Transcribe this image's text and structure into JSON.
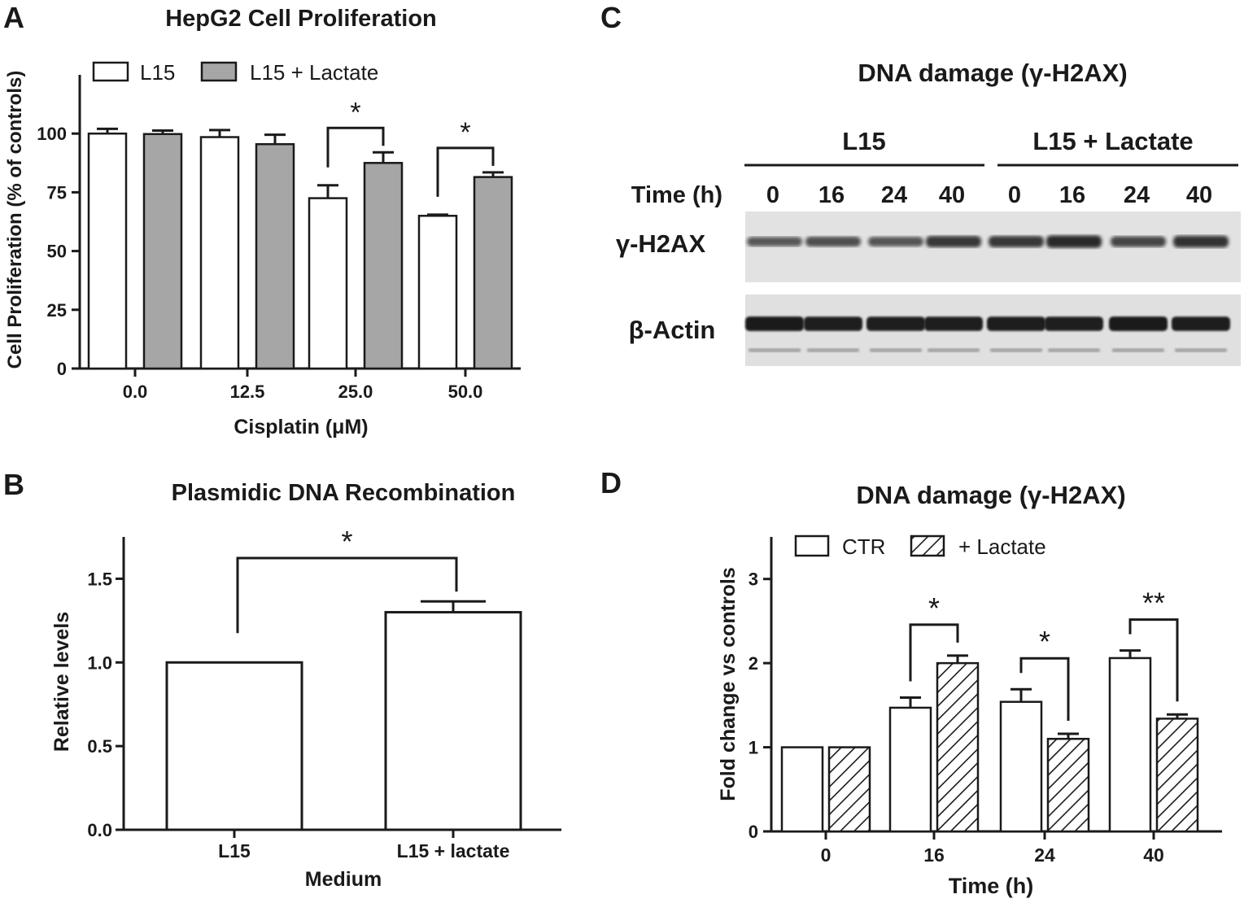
{
  "chart_data": [
    {
      "panel": "A",
      "type": "bar",
      "title": "HepG2 Cell Proliferation",
      "xlabel": "Cisplatin (μM)",
      "ylabel": "Cell Proliferation (% of controls)",
      "categories": [
        "0.0",
        "12.5",
        "25.0",
        "50.0"
      ],
      "ylim": [
        0,
        125
      ],
      "yticks": [
        "0",
        "25",
        "50",
        "75",
        "100"
      ],
      "legend_position": "top-left",
      "series": [
        {
          "name": "L15",
          "values": [
            100,
            98.5,
            72.5,
            65
          ],
          "errors": [
            2,
            3,
            5.5,
            0.5
          ],
          "fill": "#ffffff"
        },
        {
          "name": "L15 + Lactate",
          "values": [
            99.8,
            95.5,
            87.5,
            81.5
          ],
          "errors": [
            1.5,
            4,
            4.5,
            2
          ],
          "fill": "#a6a6a6"
        }
      ],
      "significance": [
        {
          "category_index": 2,
          "label": "*"
        },
        {
          "category_index": 3,
          "label": "*"
        }
      ]
    },
    {
      "panel": "B",
      "type": "bar",
      "title": "Plasmidic DNA Recombination",
      "xlabel": "Medium",
      "ylabel": "Relative levels",
      "categories": [
        "L15",
        "L15 + lactate"
      ],
      "values": [
        1.0,
        1.3
      ],
      "errors": [
        0,
        0.065
      ],
      "ylim": [
        0,
        1.75
      ],
      "yticks": [
        "0.0",
        "0.5",
        "1.0",
        "1.5"
      ],
      "significance": [
        {
          "label": "*"
        }
      ]
    },
    {
      "panel": "C",
      "type": "table",
      "title": "DNA damage (γ-H2AX)",
      "group_labels": [
        "L15",
        "L15 + Lactate"
      ],
      "time_label": "Time (h)",
      "time_points": [
        "0",
        "16",
        "24",
        "40",
        "0",
        "16",
        "24",
        "40"
      ],
      "row_labels": [
        "γ-H2AX",
        "β-Actin"
      ],
      "gamma_h2ax_band_intensity": [
        0.55,
        0.62,
        0.58,
        0.8,
        0.8,
        0.92,
        0.7,
        0.85
      ],
      "beta_actin_band_intensity": [
        0.95,
        0.9,
        0.9,
        0.9,
        0.92,
        0.9,
        0.95,
        0.92
      ]
    },
    {
      "panel": "D",
      "type": "bar",
      "title": "DNA damage (γ-H2AX)",
      "xlabel": "Time (h)",
      "ylabel": "Fold change vs controls",
      "categories": [
        "0",
        "16",
        "24",
        "40"
      ],
      "ylim": [
        0,
        3.5
      ],
      "yticks": [
        "0",
        "1",
        "2",
        "3"
      ],
      "legend_position": "top-left",
      "series": [
        {
          "name": "CTR",
          "values": [
            1.0,
            1.47,
            1.54,
            2.06
          ],
          "errors": [
            0,
            0.12,
            0.15,
            0.09
          ],
          "pattern": "solid"
        },
        {
          "name": "+ Lactate",
          "values": [
            1.0,
            2.0,
            1.1,
            1.34
          ],
          "errors": [
            0,
            0.09,
            0.06,
            0.05
          ],
          "pattern": "hatched"
        }
      ],
      "significance": [
        {
          "category_index": 1,
          "label": "*"
        },
        {
          "category_index": 2,
          "label": "*"
        },
        {
          "category_index": 3,
          "label": "**"
        }
      ]
    }
  ],
  "panel_labels": [
    "A",
    "B",
    "C",
    "D"
  ],
  "colors": {
    "ink": "#1a1a1a",
    "grey_bar": "#a6a6a6",
    "blot_bg": "#e2e2e2",
    "band": "#141414"
  }
}
